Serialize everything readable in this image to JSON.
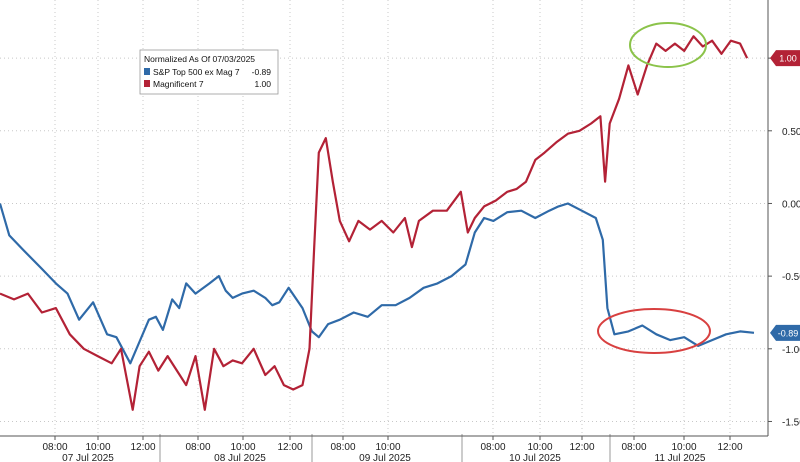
{
  "chart_data": {
    "type": "line",
    "legend": {
      "title": "Normalized As Of 07/03/2025",
      "placement": "top-left"
    },
    "series": [
      {
        "name": "S&P Top 500 ex Mag 7",
        "legend_value": "-0.89",
        "last_value_label": "-0.89",
        "color": "#2f6aa8",
        "points": [
          [
            0.0,
            0.0
          ],
          [
            0.2,
            -0.22
          ],
          [
            0.5,
            -0.32
          ],
          [
            0.9,
            -0.45
          ],
          [
            1.2,
            -0.55
          ],
          [
            1.45,
            -0.62
          ],
          [
            1.7,
            -0.8
          ],
          [
            2.0,
            -0.68
          ],
          [
            2.3,
            -0.9
          ],
          [
            2.5,
            -0.92
          ],
          [
            2.8,
            -1.1
          ],
          [
            3.0,
            -0.95
          ],
          [
            3.2,
            -0.8
          ],
          [
            3.35,
            -0.78
          ],
          [
            3.5,
            -0.87
          ],
          [
            3.7,
            -0.66
          ],
          [
            3.85,
            -0.72
          ],
          [
            4.0,
            -0.55
          ],
          [
            4.2,
            -0.62
          ],
          [
            4.5,
            -0.55
          ],
          [
            4.7,
            -0.5
          ],
          [
            4.85,
            -0.6
          ],
          [
            5.0,
            -0.65
          ],
          [
            5.2,
            -0.62
          ],
          [
            5.45,
            -0.6
          ],
          [
            5.7,
            -0.65
          ],
          [
            5.85,
            -0.7
          ],
          [
            6.0,
            -0.68
          ],
          [
            6.2,
            -0.58
          ],
          [
            6.5,
            -0.72
          ],
          [
            6.7,
            -0.88
          ],
          [
            6.85,
            -0.92
          ],
          [
            7.05,
            -0.83
          ],
          [
            7.3,
            -0.8
          ],
          [
            7.6,
            -0.75
          ],
          [
            7.9,
            -0.78
          ],
          [
            8.2,
            -0.7
          ],
          [
            8.5,
            -0.7
          ],
          [
            8.8,
            -0.65
          ],
          [
            9.1,
            -0.58
          ],
          [
            9.4,
            -0.55
          ],
          [
            9.7,
            -0.5
          ],
          [
            10.0,
            -0.42
          ],
          [
            10.2,
            -0.2
          ],
          [
            10.4,
            -0.1
          ],
          [
            10.6,
            -0.12
          ],
          [
            10.9,
            -0.06
          ],
          [
            11.2,
            -0.05
          ],
          [
            11.5,
            -0.1
          ],
          [
            11.8,
            -0.05
          ],
          [
            12.0,
            -0.02
          ],
          [
            12.2,
            0.0
          ],
          [
            12.5,
            -0.05
          ],
          [
            12.8,
            -0.1
          ],
          [
            12.95,
            -0.25
          ],
          [
            13.05,
            -0.72
          ],
          [
            13.2,
            -0.9
          ],
          [
            13.5,
            -0.88
          ],
          [
            13.8,
            -0.84
          ],
          [
            14.1,
            -0.9
          ],
          [
            14.4,
            -0.94
          ],
          [
            14.7,
            -0.92
          ],
          [
            15.0,
            -0.98
          ],
          [
            15.3,
            -0.94
          ],
          [
            15.6,
            -0.9
          ],
          [
            15.9,
            -0.88
          ],
          [
            16.2,
            -0.89
          ]
        ]
      },
      {
        "name": "Magnificent 7",
        "legend_value": "1.00",
        "last_value_label": "1.00",
        "color": "#b32236",
        "points": [
          [
            0.0,
            -0.62
          ],
          [
            0.3,
            -0.66
          ],
          [
            0.6,
            -0.62
          ],
          [
            0.9,
            -0.75
          ],
          [
            1.2,
            -0.72
          ],
          [
            1.5,
            -0.9
          ],
          [
            1.8,
            -1.0
          ],
          [
            2.1,
            -1.05
          ],
          [
            2.4,
            -1.1
          ],
          [
            2.6,
            -1.0
          ],
          [
            2.85,
            -1.42
          ],
          [
            3.0,
            -1.12
          ],
          [
            3.2,
            -1.02
          ],
          [
            3.4,
            -1.15
          ],
          [
            3.6,
            -1.05
          ],
          [
            3.8,
            -1.15
          ],
          [
            4.0,
            -1.25
          ],
          [
            4.2,
            -1.05
          ],
          [
            4.4,
            -1.42
          ],
          [
            4.6,
            -1.0
          ],
          [
            4.8,
            -1.12
          ],
          [
            5.0,
            -1.08
          ],
          [
            5.2,
            -1.1
          ],
          [
            5.45,
            -1.0
          ],
          [
            5.7,
            -1.18
          ],
          [
            5.9,
            -1.12
          ],
          [
            6.1,
            -1.25
          ],
          [
            6.3,
            -1.28
          ],
          [
            6.5,
            -1.25
          ],
          [
            6.65,
            -1.0
          ],
          [
            6.75,
            -0.3
          ],
          [
            6.85,
            0.35
          ],
          [
            7.0,
            0.45
          ],
          [
            7.15,
            0.15
          ],
          [
            7.3,
            -0.12
          ],
          [
            7.5,
            -0.26
          ],
          [
            7.7,
            -0.12
          ],
          [
            7.95,
            -0.18
          ],
          [
            8.2,
            -0.12
          ],
          [
            8.45,
            -0.2
          ],
          [
            8.7,
            -0.1
          ],
          [
            8.85,
            -0.3
          ],
          [
            9.0,
            -0.12
          ],
          [
            9.3,
            -0.05
          ],
          [
            9.6,
            -0.05
          ],
          [
            9.9,
            0.08
          ],
          [
            10.05,
            -0.2
          ],
          [
            10.2,
            -0.1
          ],
          [
            10.4,
            -0.02
          ],
          [
            10.65,
            0.02
          ],
          [
            10.9,
            0.08
          ],
          [
            11.1,
            0.1
          ],
          [
            11.3,
            0.15
          ],
          [
            11.5,
            0.3
          ],
          [
            11.7,
            0.35
          ],
          [
            11.95,
            0.42
          ],
          [
            12.2,
            0.48
          ],
          [
            12.45,
            0.5
          ],
          [
            12.7,
            0.55
          ],
          [
            12.9,
            0.6
          ],
          [
            13.0,
            0.15
          ],
          [
            13.1,
            0.55
          ],
          [
            13.3,
            0.72
          ],
          [
            13.5,
            0.95
          ],
          [
            13.7,
            0.75
          ],
          [
            13.9,
            0.95
          ],
          [
            14.1,
            1.1
          ],
          [
            14.3,
            1.05
          ],
          [
            14.5,
            1.1
          ],
          [
            14.7,
            1.05
          ],
          [
            14.9,
            1.15
          ],
          [
            15.1,
            1.08
          ],
          [
            15.3,
            1.12
          ],
          [
            15.5,
            1.03
          ],
          [
            15.7,
            1.12
          ],
          [
            15.9,
            1.1
          ],
          [
            16.05,
            1.0
          ]
        ]
      }
    ],
    "x_ticks": [
      "08:00",
      "10:00",
      "12:00",
      "08:00",
      "10:00",
      "12:00",
      "08:00",
      "10:00",
      "08:00",
      "10:00",
      "12:00",
      "08:00",
      "10:00",
      "12:00"
    ],
    "x_day_labels": [
      "07 Jul 2025",
      "08 Jul 2025",
      "09 Jul 2025",
      "10 Jul 2025",
      "11 Jul 2025"
    ],
    "y_ticks": [
      "1.00",
      "0.50",
      "0.00",
      "-0.50",
      "-1.00",
      "-1.50"
    ],
    "ylim": [
      -1.6,
      1.4
    ],
    "grid": true
  }
}
